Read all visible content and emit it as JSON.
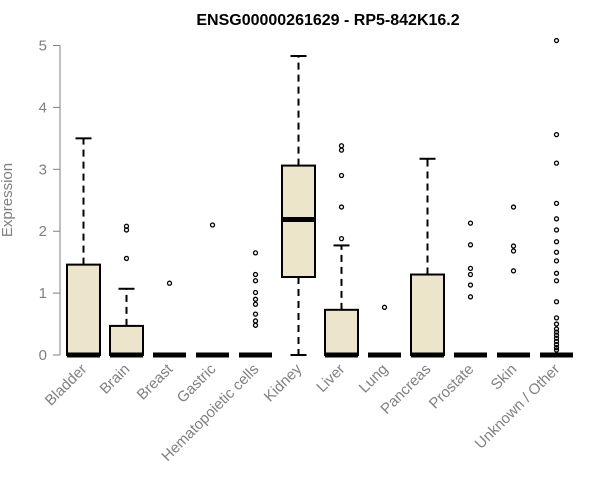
{
  "chart_data": {
    "type": "boxplot",
    "title": "ENSG00000261629 - RP5-842K16.2",
    "xlabel": "",
    "ylabel": "Expression",
    "ylim": [
      0,
      5.1
    ],
    "yticks": [
      0,
      1,
      2,
      3,
      4,
      5
    ],
    "box_fill": "#ece5cc",
    "box_stroke": "#000000",
    "axis_color": "#808080",
    "categories": [
      "Bladder",
      "Brain",
      "Breast",
      "Gastric",
      "Hematopoietic cells",
      "Kidney",
      "Liver",
      "Lung",
      "Pancreas",
      "Prostate",
      "Skin",
      "Unknown / Other"
    ],
    "boxes": [
      {
        "min": 0,
        "q1": 0,
        "median": 0,
        "q3": 1.46,
        "max": 3.5,
        "outliers": []
      },
      {
        "min": 0,
        "q1": 0,
        "median": 0,
        "q3": 0.47,
        "max": 1.07,
        "outliers": [
          1.56,
          2.02,
          2.08
        ]
      },
      {
        "min": 0,
        "q1": 0,
        "median": 0,
        "q3": 0,
        "max": 0,
        "outliers": [
          1.16
        ]
      },
      {
        "min": 0,
        "q1": 0,
        "median": 0,
        "q3": 0,
        "max": 0,
        "outliers": [
          2.1
        ]
      },
      {
        "min": 0,
        "q1": 0,
        "median": 0,
        "q3": 0,
        "max": 0,
        "outliers": [
          0.48,
          0.55,
          0.66,
          0.82,
          0.9,
          1.01,
          1.2,
          1.3,
          1.65
        ]
      },
      {
        "min": 0,
        "q1": 1.26,
        "median": 2.19,
        "q3": 3.06,
        "max": 4.83,
        "outliers": []
      },
      {
        "min": 0,
        "q1": 0,
        "median": 0,
        "q3": 0.73,
        "max": 1.77,
        "outliers": [
          1.88,
          2.39,
          2.9,
          3.31,
          3.38
        ]
      },
      {
        "min": 0,
        "q1": 0,
        "median": 0,
        "q3": 0,
        "max": 0,
        "outliers": [
          0.77
        ]
      },
      {
        "min": 0,
        "q1": 0,
        "median": 0,
        "q3": 1.3,
        "max": 3.17,
        "outliers": []
      },
      {
        "min": 0,
        "q1": 0,
        "median": 0,
        "q3": 0,
        "max": 0,
        "outliers": [
          0.94,
          1.13,
          1.3,
          1.4,
          1.78,
          2.13
        ]
      },
      {
        "min": 0,
        "q1": 0,
        "median": 0,
        "q3": 0,
        "max": 0,
        "outliers": [
          1.36,
          1.68,
          1.76,
          2.39
        ]
      },
      {
        "min": 0,
        "q1": 0,
        "median": 0,
        "q3": 0,
        "max": 0,
        "outliers": [
          0.08,
          0.12,
          0.17,
          0.22,
          0.27,
          0.32,
          0.37,
          0.42,
          0.5,
          0.6,
          0.86,
          1.2,
          1.32,
          1.52,
          1.66,
          1.83,
          2.02,
          2.2,
          2.45,
          3.1,
          3.56,
          5.08
        ]
      }
    ]
  }
}
